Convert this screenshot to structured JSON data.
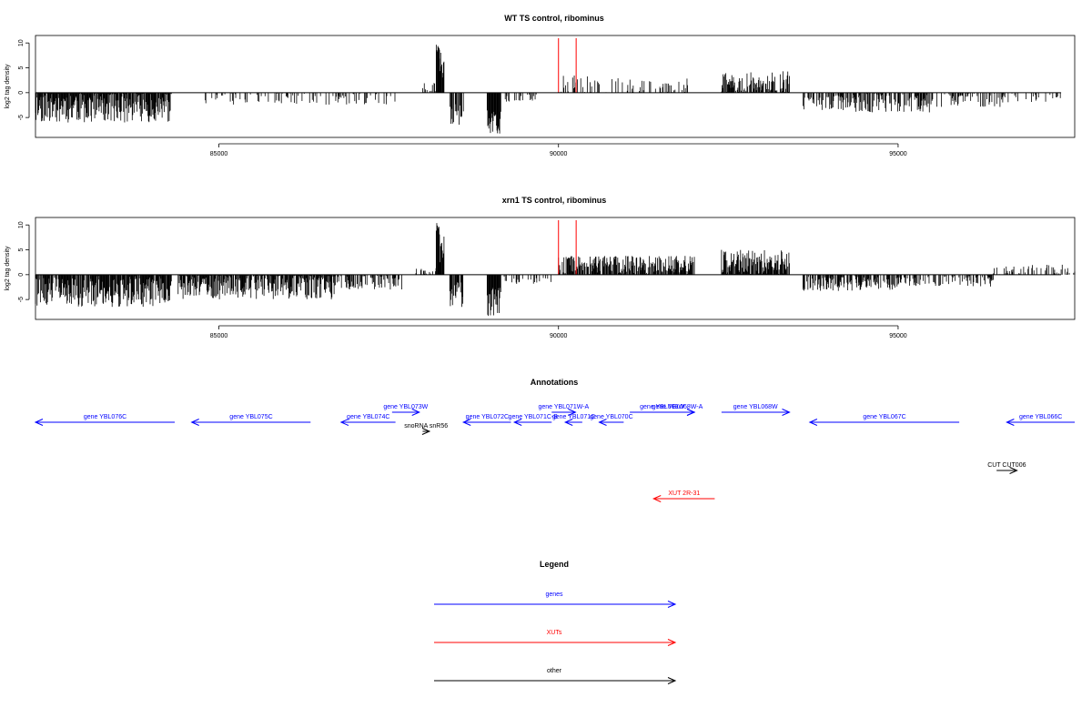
{
  "colors": {
    "genes": "#0000ff",
    "xuts": "#ff0000",
    "other": "#000000",
    "signal": "#000000",
    "marker": "#ff0000"
  },
  "chart_data": [
    {
      "type": "bar",
      "title": "WT TS control, ribominus",
      "ylabel": "log2 tag density",
      "xlim": [
        82300,
        97600
      ],
      "ylim": [
        -9,
        11.5
      ],
      "xticks": [
        85000,
        90000,
        95000
      ],
      "yticks": [
        10,
        5,
        0,
        -5
      ],
      "grid": false,
      "markers_x": [
        90000,
        90260
      ],
      "segments": [
        {
          "x0": 82300,
          "x1": 84300,
          "base": -2.5,
          "amp": 3.5,
          "density": 1.0,
          "seed": 11
        },
        {
          "x0": 84800,
          "x1": 87600,
          "base": -1.2,
          "amp": 1.2,
          "density": 0.25,
          "seed": 12
        },
        {
          "x0": 88000,
          "x1": 88200,
          "base": 1.0,
          "amp": 1.0,
          "density": 0.4,
          "seed": 13
        },
        {
          "x0": 88200,
          "x1": 88250,
          "base": 9.5,
          "amp": 1.5,
          "density": 1.0,
          "seed": 14
        },
        {
          "x0": 88250,
          "x1": 88320,
          "base": 6.0,
          "amp": 3.0,
          "density": 1.0,
          "seed": 15
        },
        {
          "x0": 88400,
          "x1": 88600,
          "base": -4.0,
          "amp": 2.5,
          "density": 0.6,
          "seed": 16
        },
        {
          "x0": 88950,
          "x1": 89150,
          "base": -5.5,
          "amp": 3.0,
          "density": 1.0,
          "seed": 17
        },
        {
          "x0": 89200,
          "x1": 89700,
          "base": -1.0,
          "amp": 1.0,
          "density": 0.2,
          "seed": 18
        },
        {
          "x0": 90000,
          "x1": 90600,
          "base": 1.5,
          "amp": 2.0,
          "density": 0.4,
          "seed": 19
        },
        {
          "x0": 90700,
          "x1": 91900,
          "base": 1.2,
          "amp": 1.8,
          "density": 0.35,
          "seed": 20
        },
        {
          "x0": 92400,
          "x1": 93400,
          "base": 1.8,
          "amp": 2.5,
          "density": 0.8,
          "seed": 21
        },
        {
          "x0": 93600,
          "x1": 94300,
          "base": -2.0,
          "amp": 1.5,
          "density": 0.5,
          "seed": 22
        },
        {
          "x0": 94300,
          "x1": 95500,
          "base": -2.0,
          "amp": 2.0,
          "density": 0.6,
          "seed": 23
        },
        {
          "x0": 95500,
          "x1": 96500,
          "base": -1.5,
          "amp": 1.5,
          "density": 0.35,
          "seed": 24
        },
        {
          "x0": 96500,
          "x1": 97400,
          "base": -1.0,
          "amp": 1.0,
          "density": 0.25,
          "seed": 25
        }
      ]
    },
    {
      "type": "bar",
      "title": "xrn1 TS control, ribominus",
      "ylabel": "log2 tag density",
      "xlim": [
        82300,
        97600
      ],
      "ylim": [
        -9,
        11.5
      ],
      "xticks": [
        85000,
        90000,
        95000
      ],
      "yticks": [
        10,
        5,
        0,
        -5
      ],
      "grid": false,
      "markers_x": [
        90000,
        90260
      ],
      "segments": [
        {
          "x0": 82300,
          "x1": 84300,
          "base": -3.0,
          "amp": 3.5,
          "density": 1.0,
          "seed": 31
        },
        {
          "x0": 84400,
          "x1": 86700,
          "base": -2.0,
          "amp": 3.0,
          "density": 0.95,
          "seed": 32
        },
        {
          "x0": 86700,
          "x1": 87700,
          "base": -1.5,
          "amp": 1.5,
          "density": 0.5,
          "seed": 33
        },
        {
          "x0": 87900,
          "x1": 88200,
          "base": 0.5,
          "amp": 0.8,
          "density": 0.4,
          "seed": 34
        },
        {
          "x0": 88200,
          "x1": 88250,
          "base": 9.0,
          "amp": 1.5,
          "density": 1.0,
          "seed": 35
        },
        {
          "x0": 88250,
          "x1": 88320,
          "base": 5.5,
          "amp": 3.0,
          "density": 1.0,
          "seed": 36
        },
        {
          "x0": 88400,
          "x1": 88600,
          "base": -4.0,
          "amp": 2.5,
          "density": 0.6,
          "seed": 37
        },
        {
          "x0": 88950,
          "x1": 89150,
          "base": -5.5,
          "amp": 3.0,
          "density": 1.0,
          "seed": 38
        },
        {
          "x0": 89200,
          "x1": 89900,
          "base": -1.0,
          "amp": 1.0,
          "density": 0.3,
          "seed": 39
        },
        {
          "x0": 90000,
          "x1": 92000,
          "base": 1.8,
          "amp": 2.0,
          "density": 0.85,
          "seed": 40
        },
        {
          "x0": 92400,
          "x1": 93400,
          "base": 2.2,
          "amp": 2.8,
          "density": 1.0,
          "seed": 41
        },
        {
          "x0": 93600,
          "x1": 95000,
          "base": -1.8,
          "amp": 1.5,
          "density": 0.7,
          "seed": 42
        },
        {
          "x0": 95000,
          "x1": 96400,
          "base": -1.2,
          "amp": 1.2,
          "density": 0.5,
          "seed": 43
        },
        {
          "x0": 96400,
          "x1": 97600,
          "base": 0.8,
          "amp": 1.2,
          "density": 0.3,
          "seed": 44
        }
      ]
    }
  ],
  "annotations": {
    "title": "Annotations",
    "items": [
      {
        "label": "gene YBL076C",
        "x0": 82300,
        "x1": 84350,
        "strand": "-",
        "row": 0,
        "kind": "genes"
      },
      {
        "label": "gene YBL075C",
        "x0": 84600,
        "x1": 86350,
        "strand": "-",
        "row": 0,
        "kind": "genes"
      },
      {
        "label": "gene YBL074C",
        "x0": 86800,
        "x1": 87600,
        "strand": "-",
        "row": 0,
        "kind": "genes"
      },
      {
        "label": "gene YBL073W",
        "x0": 87550,
        "x1": 87950,
        "strand": "+",
        "row": 1,
        "kind": "genes"
      },
      {
        "label": "snoRNA snR56",
        "x0": 88000,
        "x1": 88100,
        "strand": "+",
        "row": -1,
        "kind": "other"
      },
      {
        "label": "gene YBL072C",
        "x0": 88600,
        "x1": 89300,
        "strand": "-",
        "row": 0,
        "kind": "genes"
      },
      {
        "label": "gene YBL071C-B",
        "x0": 89350,
        "x1": 89900,
        "strand": "-",
        "row": 0,
        "kind": "genes"
      },
      {
        "label": "gene YBL071W-A",
        "x0": 89900,
        "x1": 90250,
        "strand": "+",
        "row": 1,
        "kind": "genes"
      },
      {
        "label": "gene YBL071C",
        "x0": 90100,
        "x1": 90350,
        "strand": "-",
        "row": 0,
        "kind": "genes"
      },
      {
        "label": "gene YBL070C",
        "x0": 90600,
        "x1": 90960,
        "strand": "-",
        "row": 0,
        "kind": "genes"
      },
      {
        "label": "gene YBL069W",
        "x0": 91050,
        "x1": 92000,
        "strand": "+",
        "row": 1,
        "kind": "genes"
      },
      {
        "label": "gene YBL068W-A",
        "x0": 91500,
        "x1": 92000,
        "strand": "+",
        "row": 1,
        "kind": "genes"
      },
      {
        "label": "gene YBL068W",
        "x0": 92400,
        "x1": 93400,
        "strand": "+",
        "row": 1,
        "kind": "genes"
      },
      {
        "label": "gene YBL067C",
        "x0": 93700,
        "x1": 95900,
        "strand": "-",
        "row": 0,
        "kind": "genes"
      },
      {
        "label": "gene YBL066C",
        "x0": 96600,
        "x1": 97600,
        "strand": "-",
        "row": 0,
        "kind": "genes"
      },
      {
        "label": "CUT CUT006",
        "x0": 96450,
        "x1": 96750,
        "strand": "+",
        "row": -2,
        "kind": "other"
      },
      {
        "label": "XUT 2R-31",
        "x0": 91400,
        "x1": 92300,
        "strand": "-",
        "row": -3,
        "kind": "xuts"
      }
    ]
  },
  "legend": {
    "title": "Legend",
    "entries": [
      {
        "label": "genes",
        "kind": "genes"
      },
      {
        "label": "XUTs",
        "kind": "xuts"
      },
      {
        "label": "other",
        "kind": "other"
      }
    ]
  }
}
